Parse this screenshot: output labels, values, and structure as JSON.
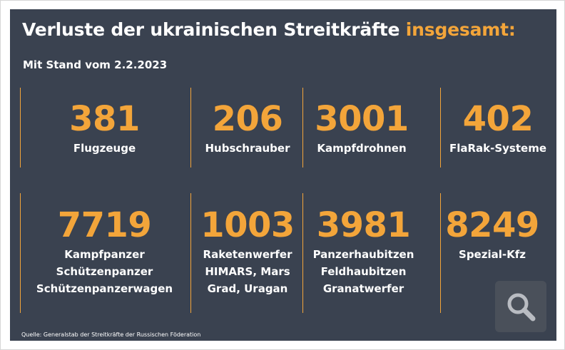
{
  "header": {
    "title_main": "Verluste der ukrainischen Streitkräfte ",
    "title_accent": "insgesamt:",
    "subtitle": "Mit Stand vom  2.2.2023"
  },
  "stats": [
    {
      "value": "381",
      "lines": [
        "Flugzeuge"
      ]
    },
    {
      "value": "206",
      "lines": [
        "Hubschrauber"
      ]
    },
    {
      "value": "3001",
      "lines": [
        "Kampfdrohnen"
      ]
    },
    {
      "value": "402",
      "lines": [
        "FlaRak-Systeme"
      ]
    },
    {
      "value": "7719",
      "lines": [
        "Kampfpanzer",
        "Schützenpanzer",
        "Schützenpanzerwagen"
      ]
    },
    {
      "value": "1003",
      "lines": [
        "Raketenwerfer",
        "HIMARS, Mars",
        "Grad, Uragan"
      ]
    },
    {
      "value": "3981",
      "lines": [
        "Panzerhaubitzen",
        "Feldhaubitzen",
        "Granatwerfer"
      ]
    },
    {
      "value": "8249",
      "lines": [
        "Spezial-Kfz"
      ]
    }
  ],
  "source": "Quelle: Generalstab der Streitkräfte der Russischen Föderation",
  "colors": {
    "background": "#3a4250",
    "accent": "#f3a53a",
    "text": "#ffffff"
  },
  "search_button": {
    "icon": "search-icon"
  }
}
